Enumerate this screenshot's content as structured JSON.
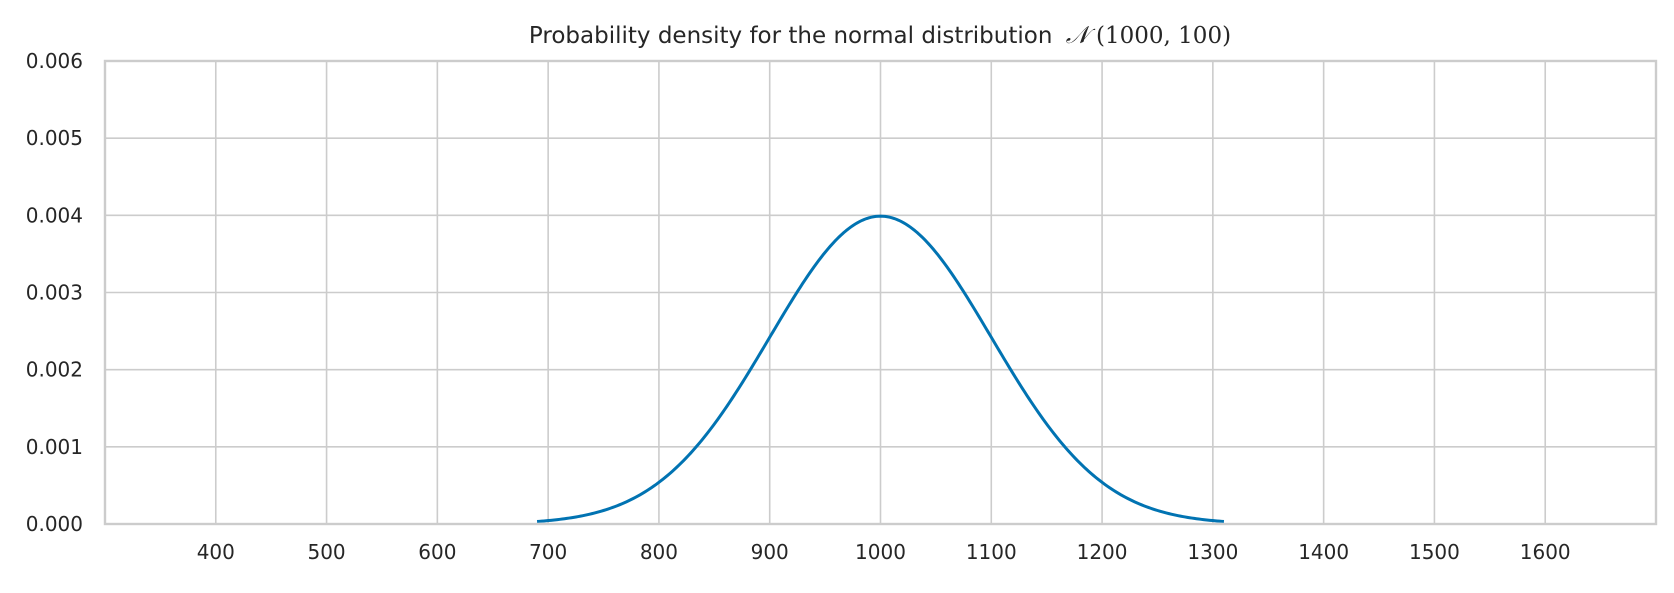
{
  "chart_data": {
    "type": "line",
    "title": "Probability density for the normal distribution",
    "title_math": {
      "script": "𝒩",
      "args": "(1000, 100)"
    },
    "xlabel": "",
    "ylabel": "",
    "xlim": [
      300,
      1700
    ],
    "ylim": [
      0,
      0.006
    ],
    "x_ticks": [
      400,
      500,
      600,
      700,
      800,
      900,
      1000,
      1100,
      1200,
      1300,
      1400,
      1500,
      1600
    ],
    "x_tick_labels": [
      "400",
      "500",
      "600",
      "700",
      "800",
      "900",
      "1000",
      "1100",
      "1200",
      "1300",
      "1400",
      "1500",
      "1600"
    ],
    "y_ticks": [
      0,
      0.001,
      0.002,
      0.003,
      0.004,
      0.005,
      0.006
    ],
    "y_tick_labels": [
      "0.000",
      "0.001",
      "0.002",
      "0.003",
      "0.004",
      "0.005",
      "0.006"
    ],
    "grid": true,
    "series": [
      {
        "color": "#0173b2",
        "distribution": {
          "mean": 1000,
          "sd": 100
        },
        "x_range": [
          690,
          1310
        ]
      }
    ]
  }
}
